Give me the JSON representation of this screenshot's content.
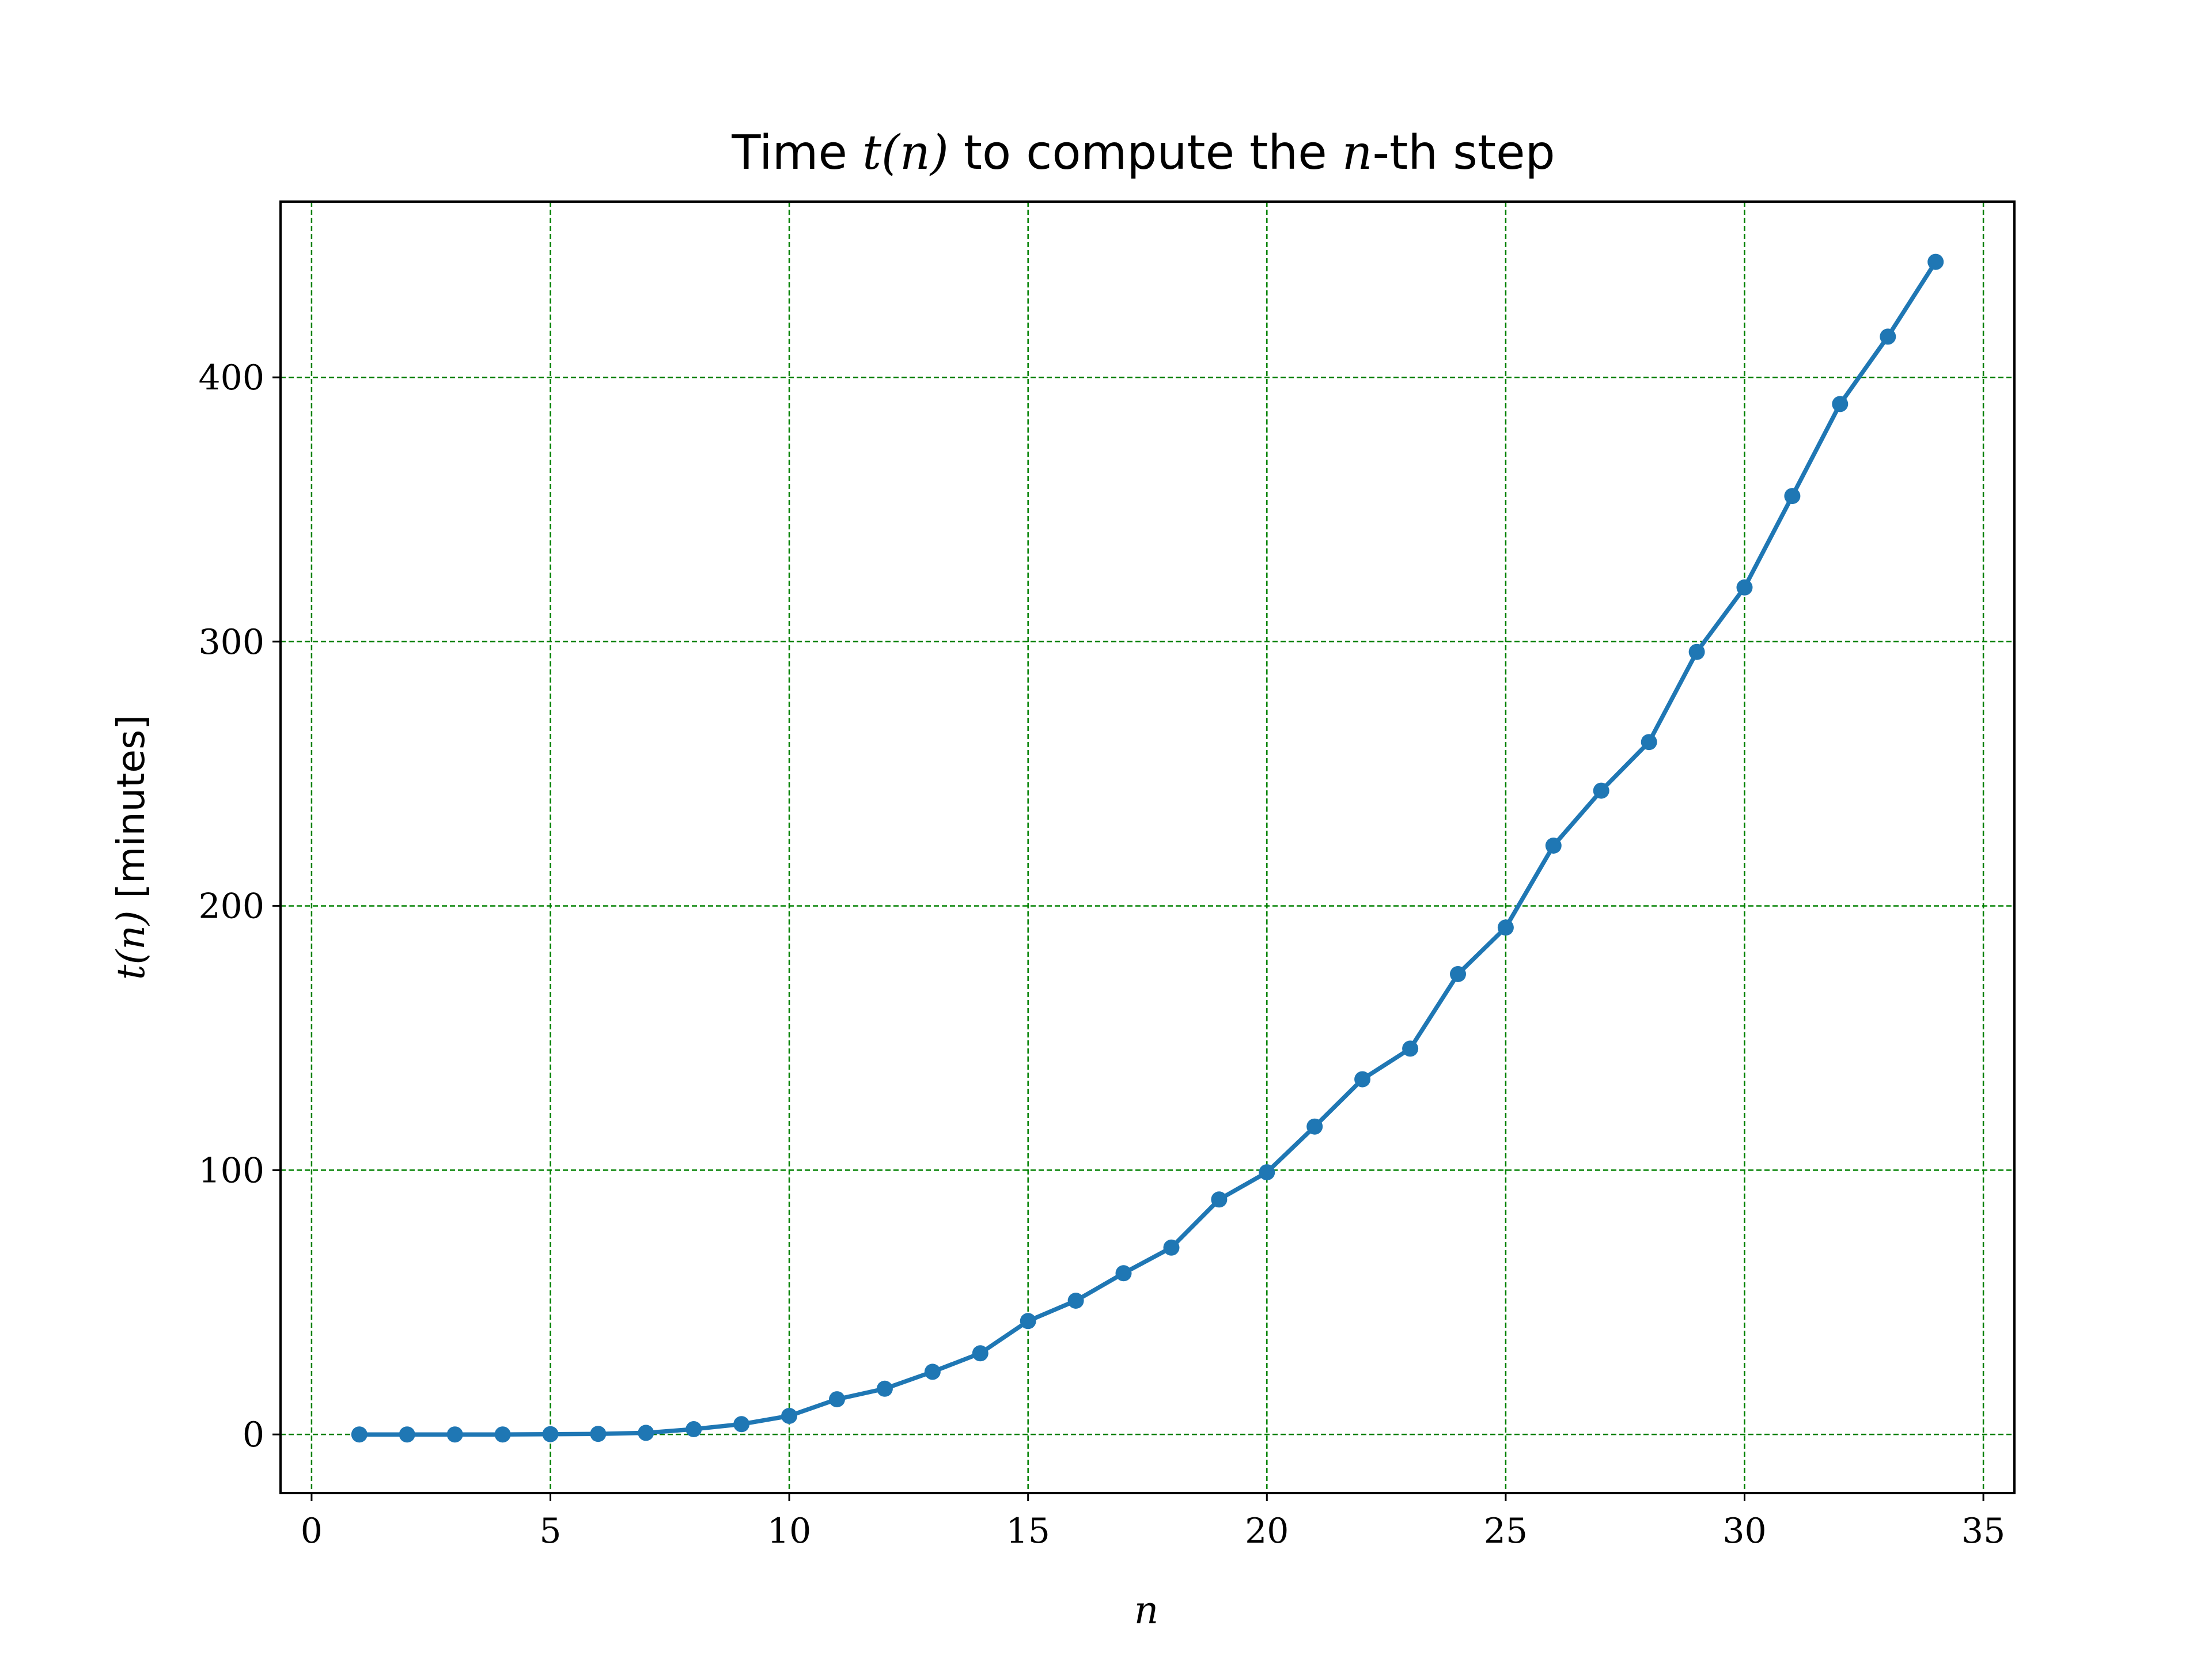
{
  "chart_data": {
    "type": "line",
    "title": {
      "prefix": "Time ",
      "math1": "t(n)",
      "middle": " to compute the ",
      "math2": "n",
      "suffix": "-th step"
    },
    "xlabel": "n",
    "ylabel": {
      "math": "t(n)",
      "text": " [minutes]"
    },
    "xlim": [
      -0.65,
      35.65
    ],
    "ylim": [
      -22.2,
      466.5
    ],
    "x_ticks": [
      0,
      5,
      10,
      15,
      20,
      25,
      30,
      35
    ],
    "y_ticks": [
      0,
      100,
      200,
      300,
      400
    ],
    "grid": true,
    "grid_color": "#008000",
    "line_color": "#1f77b4",
    "series": [
      {
        "x": [
          1,
          2,
          3,
          4,
          5,
          6,
          7,
          8,
          9,
          10,
          11,
          12,
          13,
          14,
          15,
          16,
          17,
          18,
          19,
          20,
          21,
          22,
          23,
          24,
          25,
          26,
          27,
          28,
          29,
          30,
          31,
          32,
          33,
          34
        ],
        "values": [
          0.0,
          0.0,
          0.0,
          0.0,
          0.1,
          0.2,
          0.6,
          2.0,
          3.9,
          7.0,
          13.3,
          17.3,
          23.7,
          30.7,
          42.9,
          50.6,
          61.0,
          70.7,
          88.9,
          99.2,
          116.5,
          134.4,
          146.0,
          174.2,
          191.8,
          222.8,
          243.6,
          262.0,
          296.1,
          320.5,
          355.1,
          389.9,
          415.4,
          443.7
        ]
      }
    ]
  }
}
